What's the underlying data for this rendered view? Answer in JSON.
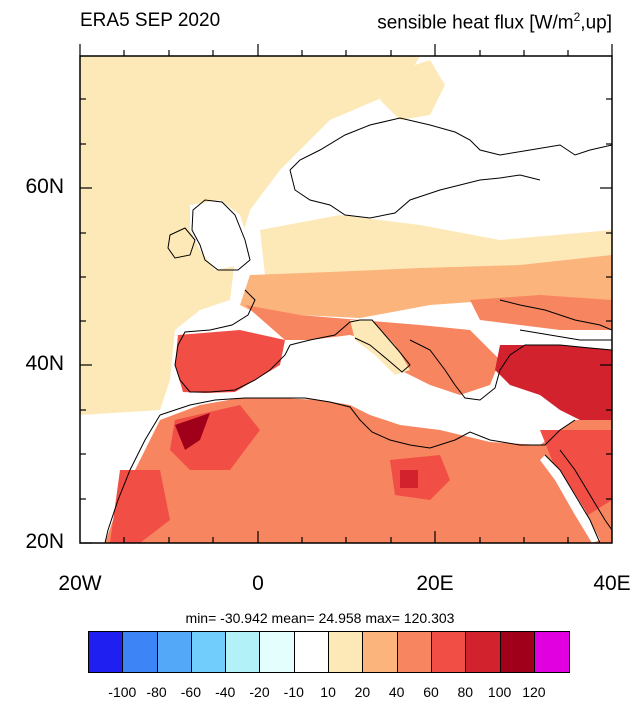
{
  "title_left": "ERA5 SEP 2020",
  "title_right_main": "sensible heat flux [W/m",
  "title_right_sup": "2",
  "title_right_tail": ",up]",
  "lat_labels": [
    "60N",
    "40N",
    "20N"
  ],
  "lon_labels": [
    "20W",
    "0",
    "20E",
    "40E"
  ],
  "stats": "min= -30.942  mean=  24.958  max= 120.303",
  "colorbar": {
    "colors": [
      "#1f1ff2",
      "#3d85f7",
      "#53a8f8",
      "#71cdfb",
      "#b2f1f8",
      "#e4fdfd",
      "#ffffff",
      "#fde9b7",
      "#fbb47b",
      "#f7855f",
      "#f14e46",
      "#d1222e",
      "#a0001a",
      "#e000e0"
    ],
    "labels": [
      "-100",
      "-80",
      "-60",
      "-40",
      "-20",
      "-10",
      "10",
      "20",
      "40",
      "60",
      "80",
      "100",
      "120"
    ]
  },
  "map_extent": {
    "lon_min": -20,
    "lon_max": 40,
    "lat_min": 20,
    "lat_max": 75
  }
}
